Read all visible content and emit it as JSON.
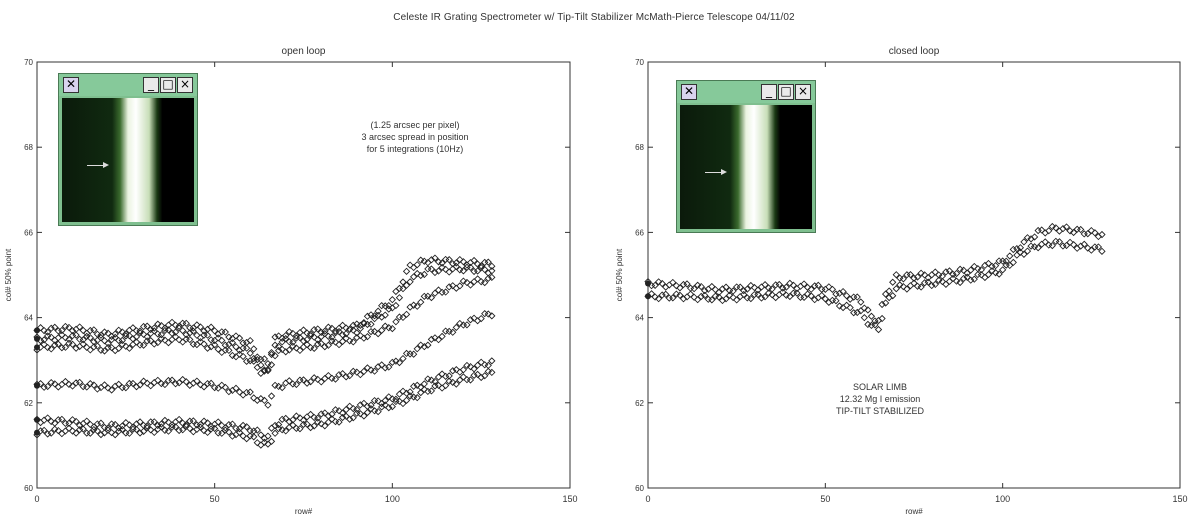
{
  "figure_title": "Celeste IR Grating Spectrometer w/ Tip-Tilt Stabilizer  McMath-Pierce Telescope 04/11/02",
  "chart_data": [
    {
      "type": "scatter",
      "title": "open  loop",
      "xlabel": "row#",
      "ylabel": "col# 50% point",
      "xlim": [
        0,
        150
      ],
      "ylim": [
        60,
        70
      ],
      "xticks": [
        0,
        50,
        100,
        150
      ],
      "yticks": [
        60,
        62,
        64,
        66,
        68,
        70
      ],
      "annotation": [
        "(1.25 arcsec per pixel)",
        "3 arcsec spread in position",
        "for 5 integrations (10Hz)"
      ],
      "marker": "open-diamond",
      "series": [
        {
          "x": [
            0,
            10,
            20,
            30,
            40,
            50,
            60,
            63,
            65,
            67,
            70,
            80,
            90,
            100,
            105,
            110,
            120,
            128
          ],
          "y": [
            63.7,
            63.75,
            63.6,
            63.75,
            63.85,
            63.7,
            63.4,
            63.0,
            62.95,
            63.5,
            63.6,
            63.7,
            63.8,
            64.4,
            65.2,
            65.35,
            65.3,
            65.25
          ]
        },
        {
          "x": [
            0,
            10,
            20,
            30,
            40,
            50,
            60,
            63,
            65,
            67,
            70,
            80,
            90,
            100,
            105,
            110,
            120,
            128
          ],
          "y": [
            63.5,
            63.55,
            63.45,
            63.6,
            63.7,
            63.5,
            63.2,
            62.85,
            62.8,
            63.35,
            63.45,
            63.55,
            63.7,
            64.2,
            64.9,
            65.1,
            65.15,
            65.1
          ]
        },
        {
          "x": [
            0,
            10,
            20,
            30,
            40,
            50,
            60,
            63,
            65,
            67,
            70,
            80,
            90,
            100,
            105,
            110,
            120,
            128
          ],
          "y": [
            63.3,
            63.35,
            63.25,
            63.4,
            63.5,
            63.3,
            63.0,
            62.75,
            62.7,
            63.15,
            63.25,
            63.35,
            63.5,
            63.8,
            64.2,
            64.5,
            64.8,
            64.9
          ]
        },
        {
          "x": [
            0,
            10,
            20,
            30,
            40,
            50,
            60,
            63,
            65,
            67,
            70,
            80,
            90,
            100,
            105,
            110,
            120,
            128
          ],
          "y": [
            62.4,
            62.45,
            62.35,
            62.45,
            62.5,
            62.4,
            62.2,
            62.05,
            62.0,
            62.35,
            62.45,
            62.55,
            62.7,
            62.9,
            63.15,
            63.4,
            63.85,
            64.1
          ]
        },
        {
          "x": [
            0,
            10,
            20,
            30,
            40,
            50,
            60,
            63,
            65,
            67,
            70,
            80,
            90,
            100,
            105,
            110,
            120,
            128
          ],
          "y": [
            61.6,
            61.55,
            61.45,
            61.5,
            61.55,
            61.5,
            61.4,
            61.25,
            61.2,
            61.5,
            61.6,
            61.7,
            61.9,
            62.1,
            62.3,
            62.5,
            62.8,
            62.95
          ]
        },
        {
          "x": [
            0,
            10,
            20,
            30,
            40,
            50,
            60,
            63,
            65,
            67,
            70,
            80,
            90,
            100,
            105,
            110,
            120,
            128
          ],
          "y": [
            61.3,
            61.35,
            61.3,
            61.35,
            61.4,
            61.35,
            61.2,
            61.05,
            61.0,
            61.3,
            61.4,
            61.5,
            61.7,
            61.95,
            62.1,
            62.3,
            62.55,
            62.7
          ]
        }
      ]
    },
    {
      "type": "scatter",
      "title": "closed  loop",
      "xlabel": "row#",
      "ylabel": "col# 50% point",
      "xlim": [
        0,
        150
      ],
      "ylim": [
        60,
        70
      ],
      "xticks": [
        0,
        50,
        100,
        150
      ],
      "yticks": [
        60,
        62,
        64,
        66,
        68,
        70
      ],
      "annotation": [
        "SOLAR LIMB",
        "12.32 Mg I emission",
        "TIP-TILT STABILIZED"
      ],
      "marker": "open-diamond",
      "series": [
        {
          "x": [
            0,
            10,
            20,
            30,
            40,
            50,
            60,
            63,
            65,
            67,
            70,
            80,
            90,
            100,
            105,
            110,
            115,
            120,
            128
          ],
          "y": [
            64.5,
            64.5,
            64.45,
            64.5,
            64.55,
            64.45,
            64.1,
            63.8,
            63.75,
            64.3,
            64.7,
            64.8,
            64.9,
            65.1,
            65.5,
            65.7,
            65.75,
            65.7,
            65.6
          ]
        },
        {
          "x": [
            0,
            10,
            20,
            30,
            40,
            50,
            60,
            63,
            65,
            67,
            70,
            80,
            90,
            100,
            105,
            110,
            115,
            120,
            128
          ],
          "y": [
            64.8,
            64.75,
            64.65,
            64.7,
            64.75,
            64.7,
            64.4,
            64.0,
            63.95,
            64.55,
            64.95,
            65.0,
            65.1,
            65.3,
            65.7,
            66.0,
            66.1,
            66.05,
            65.95
          ]
        }
      ]
    }
  ],
  "inset_window": {
    "system_icon": "window-menu-icon",
    "minimize_label": "_",
    "maximize_label": "□",
    "close_label": "×"
  }
}
